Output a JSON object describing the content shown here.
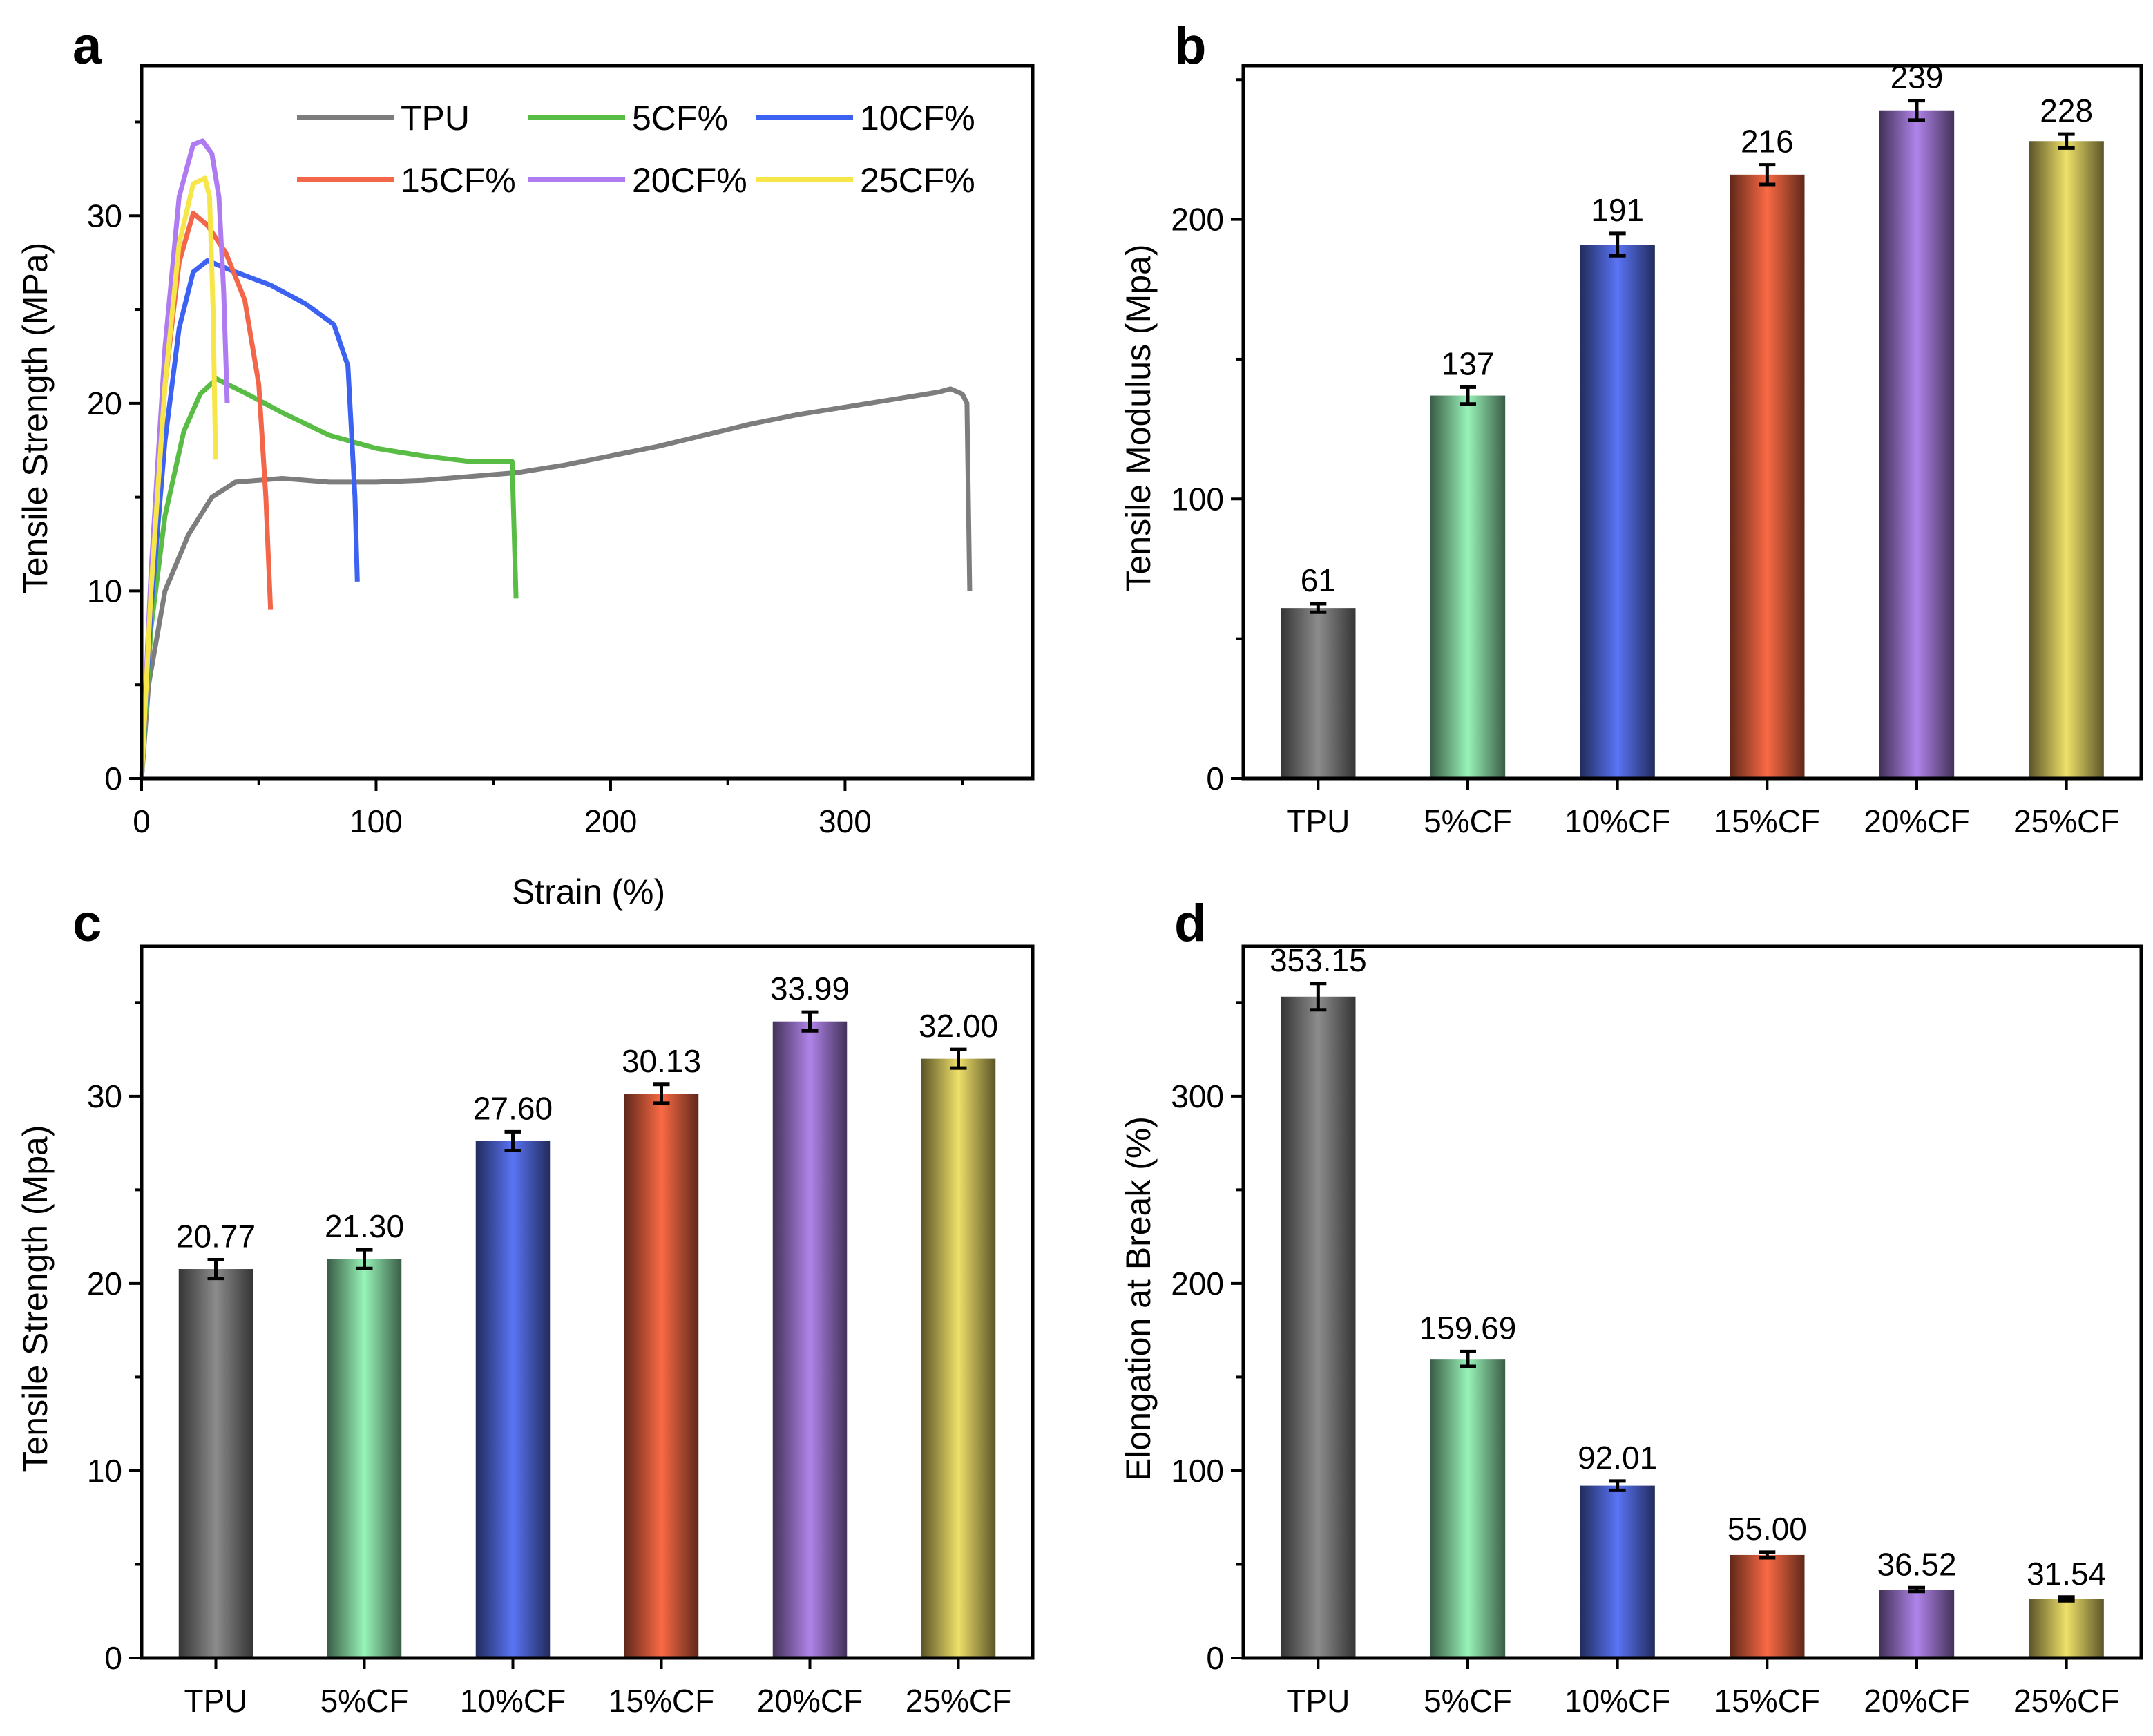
{
  "colors": {
    "TPU": "#7d7d7d",
    "5CF": "#59bd45",
    "10CF": "#3b62f0",
    "15CF": "#f2664a",
    "20CF": "#ae7bf0",
    "25CF": "#f6e64a",
    "bar_TPU": "#8c8c8c",
    "bar_5CF": "#98f4b8",
    "bar_10CF": "#5a74f5",
    "bar_15CF": "#fa6a44",
    "bar_20CF": "#b084ea",
    "bar_25CF": "#efe06a",
    "axis": "#000000"
  },
  "chart_data": [
    {
      "panel": "a",
      "type": "line",
      "title": "",
      "xlabel": "Strain (%)",
      "ylabel": "Tensile Strength (MPa)",
      "xlim": [
        0,
        380
      ],
      "ylim": [
        0,
        38
      ],
      "xticks": [
        0,
        100,
        200,
        300
      ],
      "yticks": [
        0,
        10,
        20,
        30
      ],
      "legend": "top",
      "series": [
        {
          "name": "TPU",
          "color_key": "TPU",
          "points": [
            [
              0,
              0
            ],
            [
              3,
              5
            ],
            [
              10,
              10
            ],
            [
              20,
              13
            ],
            [
              30,
              15
            ],
            [
              40,
              15.8
            ],
            [
              60,
              16
            ],
            [
              80,
              15.8
            ],
            [
              100,
              15.8
            ],
            [
              120,
              15.9
            ],
            [
              140,
              16.1
            ],
            [
              160,
              16.3
            ],
            [
              180,
              16.7
            ],
            [
              200,
              17.2
            ],
            [
              220,
              17.7
            ],
            [
              240,
              18.3
            ],
            [
              260,
              18.9
            ],
            [
              280,
              19.4
            ],
            [
              300,
              19.8
            ],
            [
              320,
              20.2
            ],
            [
              340,
              20.6
            ],
            [
              345,
              20.77
            ],
            [
              350,
              20.5
            ],
            [
              352,
              20
            ],
            [
              353.15,
              10
            ]
          ]
        },
        {
          "name": "5CF%",
          "color_key": "5CF",
          "points": [
            [
              0,
              0
            ],
            [
              4,
              8
            ],
            [
              10,
              14
            ],
            [
              18,
              18.5
            ],
            [
              25,
              20.5
            ],
            [
              32,
              21.3
            ],
            [
              45,
              20.5
            ],
            [
              60,
              19.5
            ],
            [
              80,
              18.3
            ],
            [
              100,
              17.6
            ],
            [
              120,
              17.2
            ],
            [
              140,
              16.9
            ],
            [
              158,
              16.9
            ],
            [
              159.69,
              9.6
            ]
          ]
        },
        {
          "name": "10CF%",
          "color_key": "10CF",
          "points": [
            [
              0,
              0
            ],
            [
              4,
              9
            ],
            [
              10,
              18
            ],
            [
              16,
              24
            ],
            [
              22,
              27
            ],
            [
              28,
              27.6
            ],
            [
              40,
              27
            ],
            [
              55,
              26.3
            ],
            [
              70,
              25.3
            ],
            [
              82,
              24.2
            ],
            [
              88,
              22
            ],
            [
              91,
              15
            ],
            [
              92.01,
              10.5
            ]
          ]
        },
        {
          "name": "15CF%",
          "color_key": "15CF",
          "points": [
            [
              0,
              0
            ],
            [
              4,
              10
            ],
            [
              10,
              21
            ],
            [
              16,
              27.5
            ],
            [
              22,
              30.13
            ],
            [
              28,
              29.5
            ],
            [
              36,
              28
            ],
            [
              44,
              25.5
            ],
            [
              50,
              21
            ],
            [
              53,
              15
            ],
            [
              55,
              9
            ]
          ]
        },
        {
          "name": "20CF%",
          "color_key": "20CF",
          "points": [
            [
              0,
              0
            ],
            [
              4,
              11
            ],
            [
              10,
              23
            ],
            [
              16,
              31
            ],
            [
              22,
              33.8
            ],
            [
              26,
              33.99
            ],
            [
              30,
              33.3
            ],
            [
              33,
              31
            ],
            [
              35,
              26
            ],
            [
              36.52,
              20
            ]
          ]
        },
        {
          "name": "25CF%",
          "color_key": "25CF",
          "points": [
            [
              0,
              0
            ],
            [
              4,
              10
            ],
            [
              10,
              21
            ],
            [
              16,
              28.5
            ],
            [
              22,
              31.7
            ],
            [
              27,
              32
            ],
            [
              29,
              31
            ],
            [
              30.5,
              25
            ],
            [
              31.54,
              17
            ]
          ]
        }
      ],
      "legend_entries": [
        "TPU",
        "5CF%",
        "10CF%",
        "15CF%",
        "20CF%",
        "25CF%"
      ]
    },
    {
      "panel": "b",
      "type": "bar",
      "ylabel": "Tensile Modulus (Mpa)",
      "ylim": [
        0,
        255
      ],
      "yticks": [
        0,
        100,
        200
      ],
      "categories": [
        "TPU",
        "5%CF",
        "10%CF",
        "15%CF",
        "20%CF",
        "25%CF"
      ],
      "values": [
        61,
        137,
        191,
        216,
        239,
        228
      ],
      "errors": [
        1.5,
        3,
        4,
        3.5,
        3.5,
        2.5
      ],
      "labels": [
        "61",
        "137",
        "191",
        "216",
        "239",
        "228"
      ]
    },
    {
      "panel": "c",
      "type": "bar",
      "ylabel": "Tensile Strength (Mpa)",
      "ylim": [
        0,
        38
      ],
      "yticks": [
        0,
        10,
        20,
        30
      ],
      "categories": [
        "TPU",
        "5%CF",
        "10%CF",
        "15%CF",
        "20%CF",
        "25%CF"
      ],
      "values": [
        20.77,
        21.3,
        27.6,
        30.13,
        33.99,
        32.0
      ],
      "errors": [
        0.5,
        0.5,
        0.5,
        0.5,
        0.5,
        0.5
      ],
      "labels": [
        "20.77",
        "21.30",
        "27.60",
        "30.13",
        "33.99",
        "32.00"
      ]
    },
    {
      "panel": "d",
      "type": "bar",
      "ylabel": "Elongation at Break (%)",
      "ylim": [
        0,
        380
      ],
      "yticks": [
        0,
        100,
        200,
        300
      ],
      "categories": [
        "TPU",
        "5%CF",
        "10%CF",
        "15%CF",
        "20%CF",
        "25%CF"
      ],
      "values": [
        353.15,
        159.69,
        92.01,
        55.0,
        36.52,
        31.54
      ],
      "errors": [
        7,
        4,
        2.5,
        1.5,
        1,
        1
      ],
      "labels": [
        "353.15",
        "159.69",
        "92.01",
        "55.00",
        "36.52",
        "31.54"
      ]
    }
  ],
  "panel_letters": [
    "a",
    "b",
    "c",
    "d"
  ]
}
